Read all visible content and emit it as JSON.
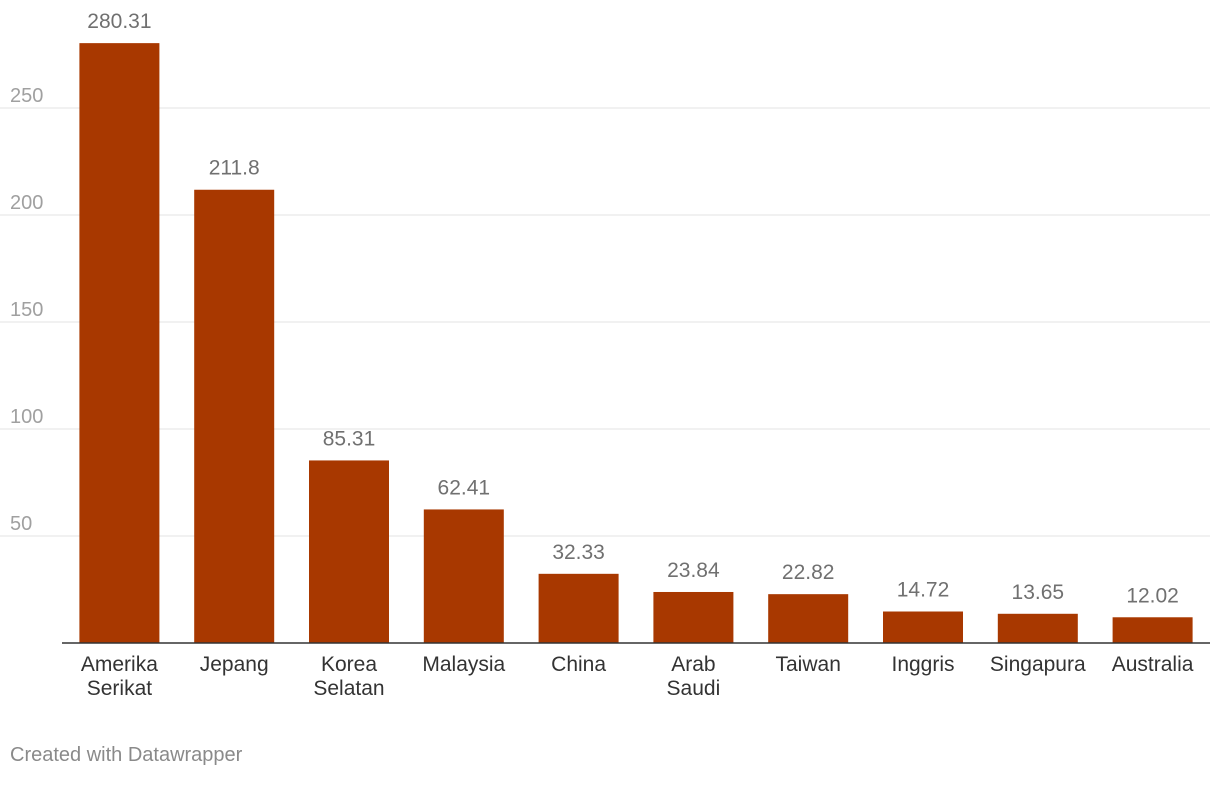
{
  "chart_data": {
    "type": "bar",
    "title": "",
    "xlabel": "",
    "ylabel": "",
    "ylim": [
      0,
      280
    ],
    "yticks": [
      50,
      100,
      150,
      200,
      250
    ],
    "grid": true,
    "bar_color": "#a83800",
    "categories": [
      [
        "Amerika",
        "Serikat"
      ],
      [
        "Jepang"
      ],
      [
        "Korea",
        "Selatan"
      ],
      [
        "Malaysia"
      ],
      [
        "China"
      ],
      [
        "Arab",
        "Saudi"
      ],
      [
        "Taiwan"
      ],
      [
        "Inggris"
      ],
      [
        "Singapura"
      ],
      [
        "Australia"
      ]
    ],
    "values": [
      280.31,
      211.8,
      85.31,
      62.41,
      32.33,
      23.84,
      22.82,
      14.72,
      13.65,
      12.02
    ],
    "value_labels": [
      "280.31",
      "211.8",
      "85.31",
      "62.41",
      "32.33",
      "23.84",
      "22.82",
      "14.72",
      "13.65",
      "12.02"
    ]
  },
  "footer": {
    "credit": "Created with Datawrapper"
  }
}
